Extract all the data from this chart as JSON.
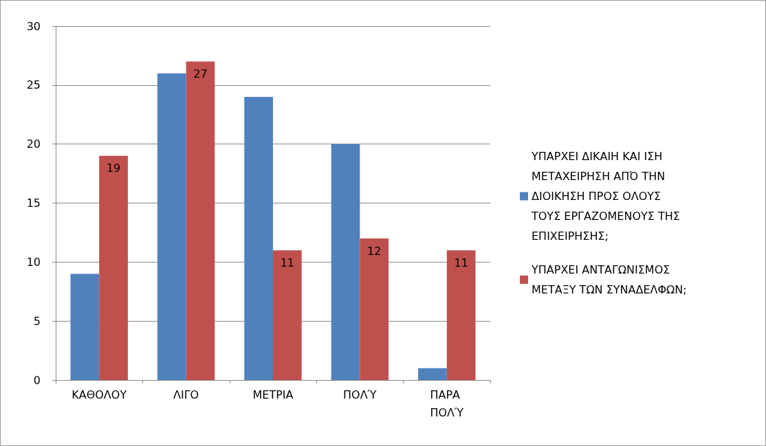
{
  "chart_data": {
    "type": "bar",
    "categories": [
      "ΚΑΘΟΛΟΥ",
      "ΛΙΓΟ",
      "ΜΕΤΡΙΑ",
      "ΠΟΛΎ",
      "ΠΑΡΑ ΠΟΛΎ"
    ],
    "series": [
      {
        "name": "ΥΠΑΡΧΕΙ ΔΙΚΑΙΗ ΚΑΙ ΙΣΗ ΜΕΤΑΧΕΙΡΗΣΗ ΑΠΌ ΤΗΝ ΔΙΟΙΚΗΣΗ ΠΡΟΣ ΟΛΟΥΣ ΤΟΥΣ ΕΡΓΑΖΟΜΕΝΟΥΣ ΤΗΣ ΕΠΙΧΕΙΡΗΣΗΣ;",
        "color": "#4f81bd",
        "values": [
          9,
          26,
          24,
          20,
          1
        ]
      },
      {
        "name": "ΥΠΑΡΧΕΙ ΑΝΤΑΓΩΝΙΣΜΟΣ ΜΕΤΑΞΥ ΤΩΝ ΣΥΝΑΔΕΛΦΩΝ;",
        "color": "#c0504d",
        "values": [
          19,
          27,
          11,
          12,
          11
        ],
        "value_labels": [
          "19",
          "27",
          "11",
          "12",
          "11"
        ]
      }
    ],
    "ylim": [
      0,
      30
    ],
    "yticks": [
      0,
      5,
      10,
      15,
      20,
      25,
      30
    ],
    "grid": "y",
    "legend": "right"
  }
}
